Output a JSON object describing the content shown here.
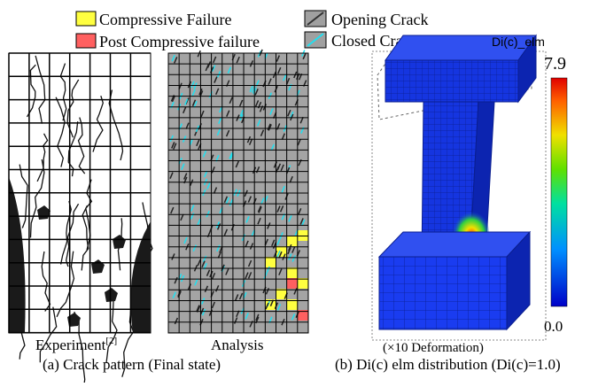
{
  "legend": {
    "compressive": "Compressive Failure",
    "post_compressive": "Post Compressive failure",
    "opening": "Opening Crack",
    "closed": "Closed Crack"
  },
  "panel_a": {
    "experiment": "Experiment",
    "reference": "[2]",
    "analysis": "Analysis",
    "caption": "(a) Crack pattern (Final state)"
  },
  "panel_b": {
    "colorbar_title": "Di(c)_elm",
    "max": "7.9",
    "min": "0.0",
    "deformation": "(×10 Deformation)",
    "caption": "(b) Di(c)  elm distribution (Di(c)=1.0)"
  }
}
